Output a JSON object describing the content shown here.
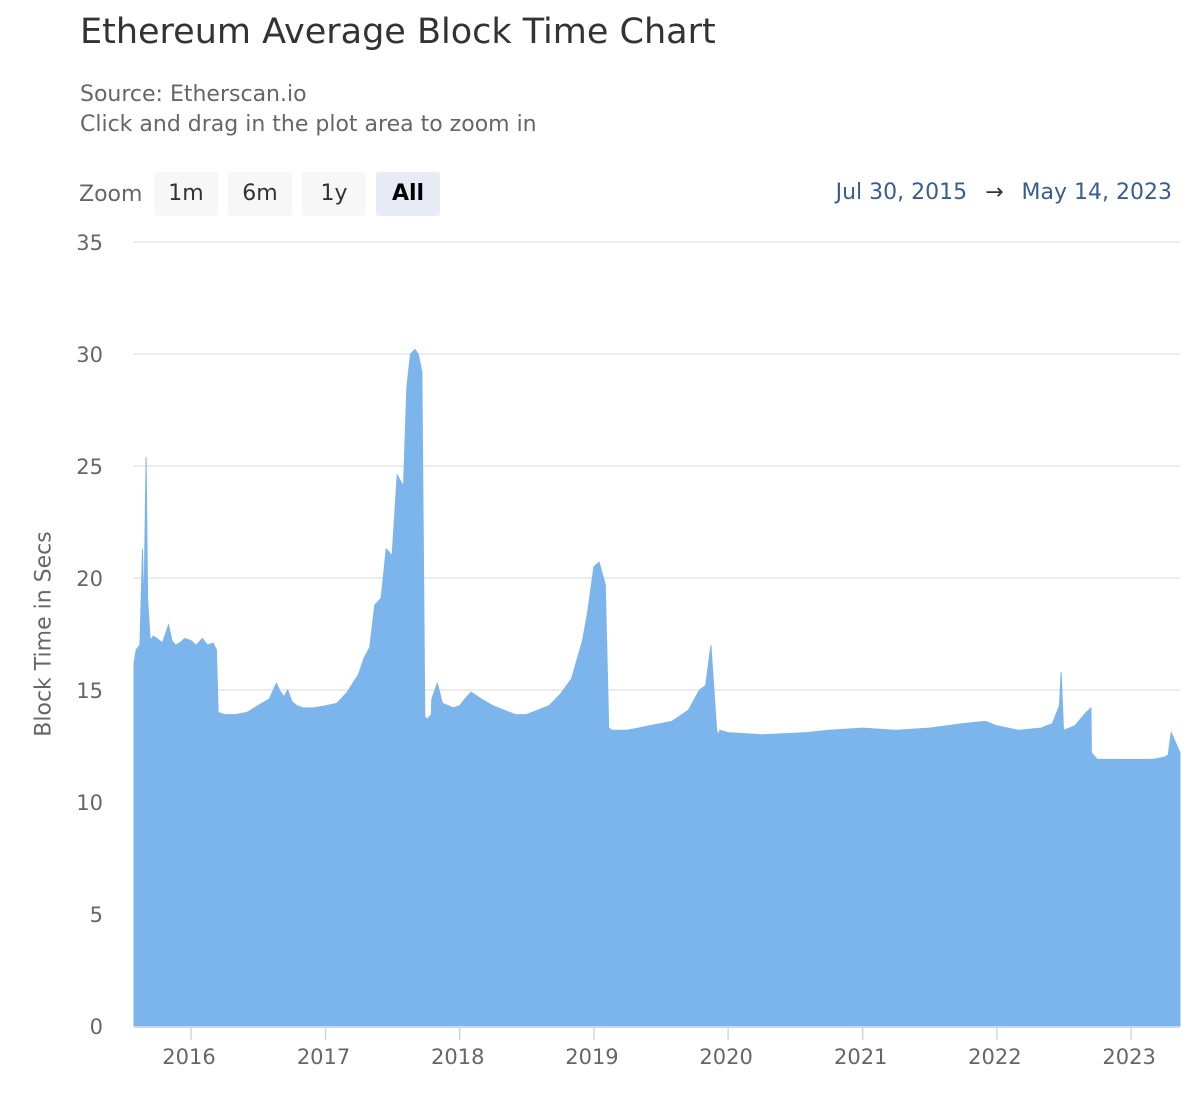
{
  "title": "Ethereum Average Block Time Chart",
  "subtitle": {
    "source": "Source: Etherscan.io",
    "hint": "Click and drag in the plot area to zoom in"
  },
  "zoom": {
    "label": "Zoom",
    "buttons": [
      "1m",
      "6m",
      "1y",
      "All"
    ],
    "active": "All"
  },
  "range": {
    "from": "Jul 30, 2015",
    "arrow": "→",
    "to": "May 14, 2023"
  },
  "colors": {
    "series": "#7cb5ec",
    "grid": "#e6e6e6",
    "axis": "#ccd6eb"
  },
  "chart_data": {
    "type": "area",
    "title": "Ethereum Average Block Time Chart",
    "ylabel": "Block Time in Secs",
    "xlabel": "",
    "ylim": [
      0,
      35
    ],
    "yticks": [
      0,
      5,
      10,
      15,
      20,
      25,
      30,
      35
    ],
    "xticks": [
      "2016",
      "2017",
      "2018",
      "2019",
      "2020",
      "2021",
      "2022",
      "2023"
    ],
    "xrange": [
      "2015-07-30",
      "2023-05-14"
    ],
    "grid": true,
    "legend": "none",
    "series": [
      {
        "x": [
          "2015-07-30",
          "2015-08-05",
          "2015-08-15",
          "2015-08-22",
          "2015-08-26",
          "2015-09-01",
          "2015-09-05",
          "2015-09-12",
          "2015-09-20",
          "2015-10-01",
          "2015-10-15",
          "2015-11-01",
          "2015-11-10",
          "2015-11-20",
          "2015-12-01",
          "2015-12-15",
          "2016-01-01",
          "2016-01-15",
          "2016-02-01",
          "2016-02-15",
          "2016-03-01",
          "2016-03-10",
          "2016-03-15",
          "2016-04-01",
          "2016-05-01",
          "2016-06-01",
          "2016-07-01",
          "2016-08-01",
          "2016-08-20",
          "2016-09-01",
          "2016-09-10",
          "2016-09-20",
          "2016-10-01",
          "2016-10-15",
          "2016-11-01",
          "2016-12-01",
          "2017-01-01",
          "2017-02-01",
          "2017-03-01",
          "2017-03-20",
          "2017-04-01",
          "2017-04-15",
          "2017-05-01",
          "2017-05-15",
          "2017-06-01",
          "2017-06-15",
          "2017-07-01",
          "2017-07-15",
          "2017-08-01",
          "2017-08-10",
          "2017-08-20",
          "2017-09-01",
          "2017-09-10",
          "2017-09-20",
          "2017-09-28",
          "2017-10-05",
          "2017-10-10",
          "2017-10-16",
          "2017-10-17",
          "2017-11-01",
          "2017-11-15",
          "2017-12-01",
          "2017-12-15",
          "2018-01-01",
          "2018-01-15",
          "2018-02-01",
          "2018-03-01",
          "2018-04-01",
          "2018-05-01",
          "2018-06-01",
          "2018-07-01",
          "2018-08-01",
          "2018-09-01",
          "2018-10-01",
          "2018-11-01",
          "2018-12-01",
          "2018-12-15",
          "2019-01-01",
          "2019-01-15",
          "2019-02-01",
          "2019-02-10",
          "2019-02-20",
          "2019-03-01",
          "2019-03-02",
          "2019-04-01",
          "2019-06-01",
          "2019-08-01",
          "2019-09-15",
          "2019-10-15",
          "2019-11-01",
          "2019-11-15",
          "2019-12-01",
          "2019-12-05",
          "2019-12-08",
          "2019-12-09",
          "2020-01-01",
          "2020-04-01",
          "2020-08-01",
          "2020-10-01",
          "2021-01-01",
          "2021-04-01",
          "2021-07-01",
          "2021-10-01",
          "2021-12-01",
          "2022-01-01",
          "2022-03-01",
          "2022-05-01",
          "2022-06-01",
          "2022-06-20",
          "2022-06-25",
          "2022-07-01",
          "2022-08-01",
          "2022-09-01",
          "2022-09-14",
          "2022-09-15",
          "2022-10-01",
          "2023-01-01",
          "2023-03-01",
          "2023-04-01",
          "2023-04-12",
          "2023-04-20",
          "2023-05-14"
        ],
        "values": [
          16.2,
          16.8,
          17.0,
          21.3,
          18.5,
          25.4,
          19.1,
          17.2,
          17.4,
          17.3,
          17.1,
          17.9,
          17.2,
          17.0,
          17.1,
          17.3,
          17.2,
          17.0,
          17.3,
          17.0,
          17.1,
          16.8,
          14.0,
          13.9,
          13.9,
          14.0,
          14.3,
          14.6,
          15.3,
          14.9,
          14.7,
          15.0,
          14.5,
          14.3,
          14.2,
          14.2,
          14.3,
          14.4,
          14.9,
          15.4,
          15.7,
          16.4,
          16.9,
          18.8,
          19.1,
          21.3,
          21.0,
          24.6,
          24.1,
          28.5,
          30.0,
          30.2,
          30.0,
          29.2,
          13.8,
          13.7,
          13.8,
          13.9,
          14.6,
          15.3,
          14.4,
          14.3,
          14.2,
          14.3,
          14.6,
          14.9,
          14.6,
          14.3,
          14.1,
          13.9,
          13.9,
          14.1,
          14.3,
          14.8,
          15.5,
          17.2,
          18.5,
          20.5,
          20.7,
          19.7,
          13.3,
          13.2,
          13.2,
          13.2,
          13.2,
          13.4,
          13.6,
          14.1,
          15.0,
          15.2,
          17.0,
          13.2,
          13.0,
          13.1,
          13.2,
          13.1,
          13.0,
          13.1,
          13.2,
          13.3,
          13.2,
          13.3,
          13.5,
          13.6,
          13.4,
          13.2,
          13.3,
          13.5,
          14.3,
          15.8,
          13.2,
          13.4,
          14.0,
          14.2,
          12.2,
          11.9,
          11.9,
          11.9,
          12.0,
          12.1,
          13.1,
          12.2
        ]
      }
    ]
  }
}
